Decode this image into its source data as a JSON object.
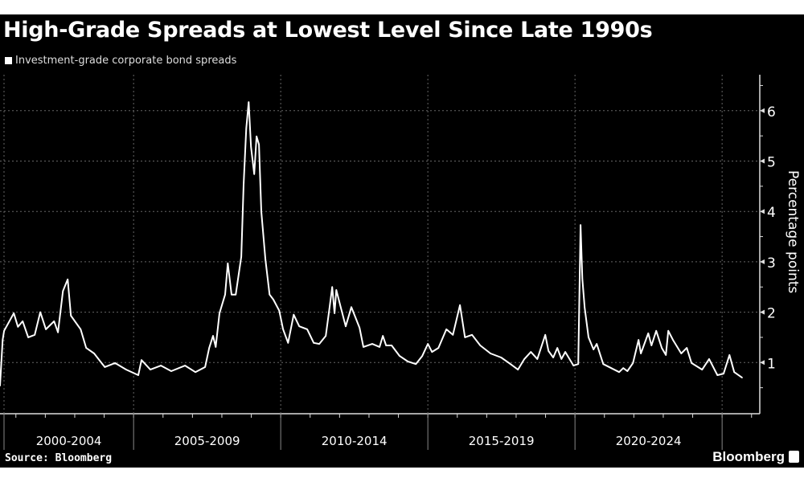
{
  "chart_data": {
    "type": "line",
    "title": "High-Grade Spreads at Lowest Level Since Late 1990s",
    "legend": [
      "Investment-grade corporate bond spreads"
    ],
    "legend_position": "top-left",
    "xlabel": "",
    "ylabel": "Percentage points",
    "source": "Source: Bloomberg",
    "brand": "Bloomberg",
    "x_tick_labels": [
      "2000-2004",
      "2005-2009",
      "2010-2014",
      "2015-2019",
      "2020-2024"
    ],
    "x_period_starts": [
      2000,
      2005,
      2010,
      2015,
      2020,
      2025
    ],
    "y_ticks": [
      1,
      2,
      3,
      4,
      5,
      6
    ],
    "xlim": [
      2000.46,
      2026.28
    ],
    "ylim": [
      0,
      6.7
    ],
    "grid": true,
    "colors": {
      "line": "#ffffff",
      "background": "#000000",
      "grid": "#666666"
    },
    "series": [
      {
        "name": "Investment-grade corporate bond spreads",
        "x": [
          2000.46,
          2000.55,
          2000.6,
          2000.93,
          2001.07,
          2001.23,
          2001.42,
          2001.64,
          2001.83,
          2002.02,
          2002.3,
          2002.43,
          2002.6,
          2002.76,
          2002.87,
          2003.2,
          2003.39,
          2003.66,
          2004.02,
          2004.37,
          2004.75,
          2005.16,
          2005.27,
          2005.57,
          2005.93,
          2006.28,
          2006.75,
          2007.1,
          2007.43,
          2007.57,
          2007.7,
          2007.79,
          2007.92,
          2008.11,
          2008.2,
          2008.33,
          2008.47,
          2008.66,
          2008.74,
          2008.83,
          2008.91,
          2008.99,
          2009.1,
          2009.18,
          2009.26,
          2009.34,
          2009.48,
          2009.62,
          2009.75,
          2009.95,
          2010.08,
          2010.25,
          2010.44,
          2010.63,
          2010.9,
          2011.12,
          2011.31,
          2011.53,
          2011.67,
          2011.75,
          2011.83,
          2011.89,
          2012.02,
          2012.21,
          2012.4,
          2012.68,
          2012.81,
          2013.11,
          2013.36,
          2013.47,
          2013.58,
          2013.77,
          2014.04,
          2014.32,
          2014.59,
          2014.81,
          2015.0,
          2015.14,
          2015.36,
          2015.63,
          2015.85,
          2016.09,
          2016.26,
          2016.5,
          2016.78,
          2017.13,
          2017.49,
          2017.76,
          2018.06,
          2018.28,
          2018.5,
          2018.72,
          2018.99,
          2019.1,
          2019.26,
          2019.4,
          2019.54,
          2019.67,
          2019.95,
          2020.11,
          2020.19,
          2020.25,
          2020.33,
          2020.46,
          2020.63,
          2020.74,
          2020.96,
          2021.23,
          2021.5,
          2021.64,
          2021.78,
          2021.97,
          2022.16,
          2022.24,
          2022.49,
          2022.6,
          2022.76,
          2022.95,
          2023.09,
          2023.17,
          2023.33,
          2023.61,
          2023.8,
          2023.96,
          2024.32,
          2024.56,
          2024.84,
          2025.05,
          2025.25,
          2025.41,
          2025.68
        ],
        "y": [
          0.54,
          1.45,
          1.63,
          1.98,
          1.71,
          1.82,
          1.5,
          1.55,
          2.0,
          1.66,
          1.82,
          1.6,
          2.42,
          2.65,
          1.93,
          1.66,
          1.29,
          1.18,
          0.91,
          0.99,
          0.86,
          0.75,
          1.05,
          0.86,
          0.94,
          0.83,
          0.94,
          0.81,
          0.91,
          1.29,
          1.53,
          1.31,
          1.98,
          2.35,
          2.97,
          2.35,
          2.35,
          3.1,
          4.53,
          5.65,
          6.17,
          5.28,
          4.74,
          5.49,
          5.33,
          4.0,
          3.05,
          2.35,
          2.25,
          2.03,
          1.66,
          1.39,
          1.95,
          1.72,
          1.66,
          1.39,
          1.37,
          1.53,
          2.14,
          2.5,
          1.98,
          2.44,
          2.14,
          1.72,
          2.1,
          1.69,
          1.31,
          1.37,
          1.31,
          1.53,
          1.34,
          1.34,
          1.13,
          1.02,
          0.97,
          1.13,
          1.37,
          1.21,
          1.29,
          1.66,
          1.55,
          2.14,
          1.5,
          1.55,
          1.34,
          1.18,
          1.1,
          0.99,
          0.86,
          1.07,
          1.21,
          1.07,
          1.55,
          1.23,
          1.1,
          1.29,
          1.07,
          1.21,
          0.94,
          0.97,
          3.73,
          2.66,
          2.09,
          1.5,
          1.26,
          1.37,
          0.97,
          0.89,
          0.81,
          0.89,
          0.83,
          0.99,
          1.45,
          1.18,
          1.58,
          1.34,
          1.63,
          1.29,
          1.15,
          1.63,
          1.45,
          1.18,
          1.29,
          0.99,
          0.86,
          1.07,
          0.75,
          0.78,
          1.15,
          0.81,
          0.7
        ]
      }
    ]
  }
}
